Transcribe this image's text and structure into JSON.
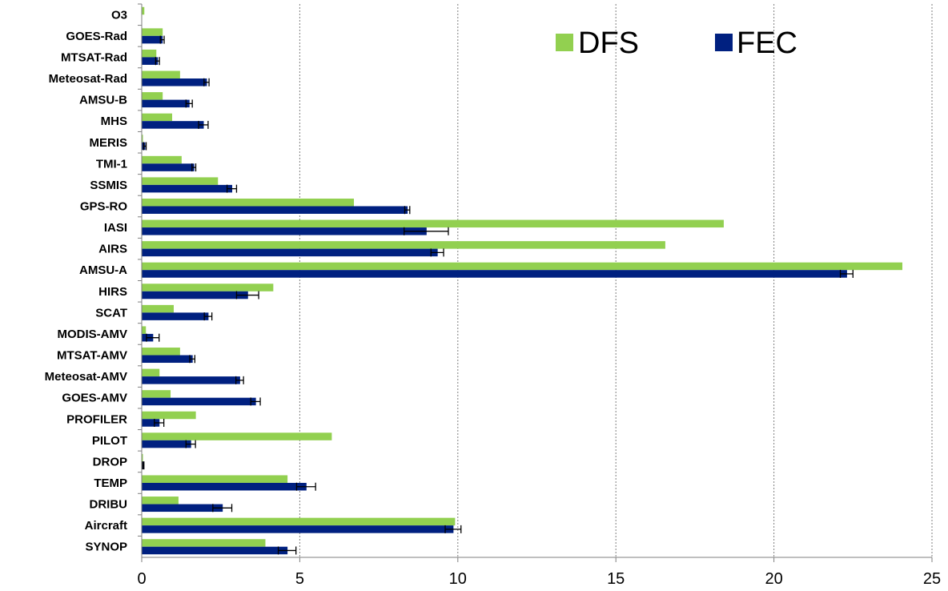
{
  "chart_data": {
    "type": "bar",
    "orientation": "horizontal",
    "categories": [
      "O3",
      "GOES-Rad",
      "MTSAT-Rad",
      "Meteosat-Rad",
      "AMSU-B",
      "MHS",
      "MERIS",
      "TMI-1",
      "SSMIS",
      "GPS-RO",
      "IASI",
      "AIRS",
      "AMSU-A",
      "HIRS",
      "SCAT",
      "MODIS-AMV",
      "MTSAT-AMV",
      "Meteosat-AMV",
      "GOES-AMV",
      "PROFILER",
      "PILOT",
      "DROP",
      "TEMP",
      "DRIBU",
      "Aircraft",
      "SYNOP"
    ],
    "series": [
      {
        "name": "DFS",
        "color": "#92d050",
        "values": [
          0.07,
          0.65,
          0.45,
          1.2,
          0.65,
          0.95,
          0.02,
          1.25,
          2.4,
          6.7,
          18.4,
          16.55,
          24.05,
          4.15,
          1.0,
          0.12,
          1.2,
          0.55,
          0.9,
          1.7,
          6.0,
          0.02,
          4.6,
          1.15,
          9.9,
          3.9
        ]
      },
      {
        "name": "FEC",
        "color": "#002080",
        "values": [
          0.0,
          0.65,
          0.5,
          2.05,
          1.5,
          1.95,
          0.1,
          1.65,
          2.85,
          8.4,
          9.0,
          9.35,
          22.3,
          3.35,
          2.1,
          0.35,
          1.6,
          3.1,
          3.6,
          0.55,
          1.55,
          0.05,
          5.2,
          2.55,
          9.85,
          4.6
        ],
        "error": [
          0.0,
          0.06,
          0.06,
          0.08,
          0.1,
          0.15,
          0.04,
          0.06,
          0.15,
          0.08,
          0.7,
          0.2,
          0.2,
          0.35,
          0.12,
          0.2,
          0.08,
          0.12,
          0.15,
          0.15,
          0.15,
          0.02,
          0.3,
          0.3,
          0.25,
          0.28
        ]
      }
    ],
    "x_ticks": [
      "0",
      "5",
      "10",
      "15",
      "20",
      "25"
    ],
    "xlim": [
      0,
      25
    ],
    "grid": "vertical dotted",
    "legend_position": "top-right"
  }
}
